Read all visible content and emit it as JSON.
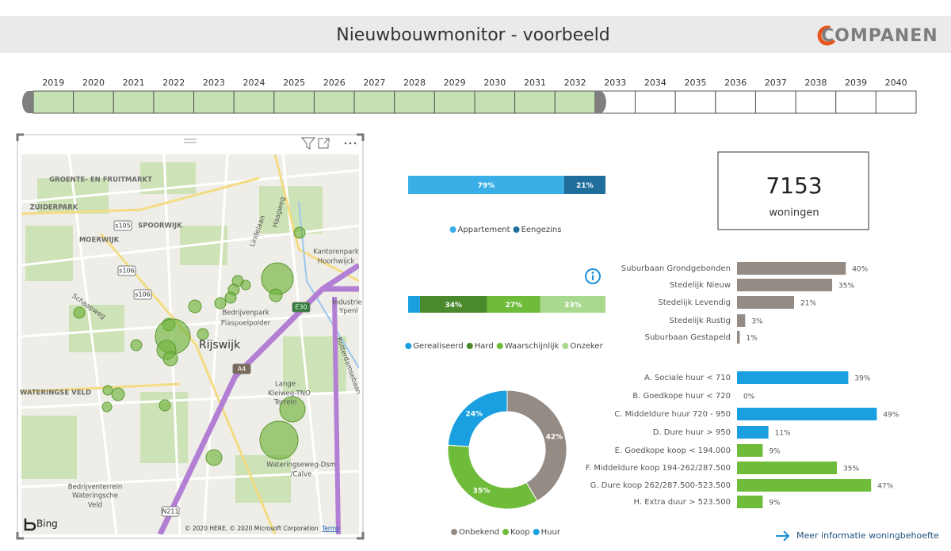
{
  "header": {
    "title": "Nieuwbouwmonitor - voorbeeld",
    "logo": "COMPANEN"
  },
  "timeline": {
    "years": [
      "2019",
      "2020",
      "2021",
      "2022",
      "2023",
      "2024",
      "2025",
      "2026",
      "2027",
      "2028",
      "2029",
      "2030",
      "2031",
      "2032",
      "2033",
      "2034",
      "2035",
      "2036",
      "2037",
      "2038",
      "2039",
      "2040"
    ],
    "selected": [
      "2019",
      "2032"
    ]
  },
  "map": {
    "labels": [
      "GROENTE- EN FRUITMARKT",
      "ZUIDERPARK",
      "MOERWIJK",
      "SPOORWIJK",
      "Schaapweg",
      "Lindelaan",
      "Haagweg",
      "Kantorenpark",
      "Hoorhwijck",
      "Bedrijvenpark",
      "Plaspoelpolder",
      "Rijswijk",
      "Industrie",
      "Ypenl",
      "Rotterdamsebaan",
      "WATERINGSE VELD",
      "Lange",
      "Kleiweg-TNO",
      "Terrein",
      "Wateringseweg-Dsm",
      "/Calve",
      "Bedrijventerrein",
      "Wateringsche",
      "Veld"
    ],
    "shields": [
      "s105",
      "s106",
      "s106",
      "A4",
      "E30",
      "N211"
    ],
    "brand": "Bing",
    "attribution": "© 2020 HERE, © 2020 Microsoft Corporation",
    "terms": "Terms"
  },
  "kpi": {
    "value": 7153,
    "label": "woningen"
  },
  "link": "Meer informatie woningbehoefte",
  "chart_data": [
    {
      "type": "stacked-bar",
      "series": [
        {
          "name": "Appartement",
          "color": "#3aaee6",
          "values": [
            79
          ],
          "value_labels": [
            "79%"
          ]
        },
        {
          "name": "Eengezins",
          "color": "#1f6e9c",
          "values": [
            21
          ],
          "value_labels": [
            "21%"
          ]
        }
      ]
    },
    {
      "type": "stacked-bar",
      "series": [
        {
          "name": "Gerealiseerd",
          "color": "#1aa0e0",
          "values": [
            6
          ]
        },
        {
          "name": "Hard",
          "color": "#4b8a2c",
          "values": [
            34
          ],
          "value_labels": [
            "34%"
          ]
        },
        {
          "name": "Waarschijnlijk",
          "color": "#6fbb3a",
          "values": [
            27
          ],
          "value_labels": [
            "27%"
          ]
        },
        {
          "name": "Onzeker",
          "color": "#a9d88f",
          "values": [
            33
          ],
          "value_labels": [
            "33%"
          ]
        }
      ]
    },
    {
      "type": "donut",
      "categories": [
        "Onbekend",
        "Koop",
        "Huur"
      ],
      "values": [
        42,
        35,
        24
      ],
      "value_labels": [
        "42%",
        "35%",
        "24%"
      ],
      "colors": [
        "#958b85",
        "#6fbb3a",
        "#1aa0e0"
      ]
    },
    {
      "type": "hbar",
      "categories": [
        "Suburbaan Grondgebonden",
        "Stedelijk Nieuw",
        "Stedelijk Levendig",
        "Stedelijk Rustig",
        "Suburbaan Gestapeld"
      ],
      "values": [
        40,
        35,
        21,
        3,
        1
      ],
      "value_labels": [
        "40%",
        "35%",
        "21%",
        "3%",
        "1%"
      ],
      "colors": [
        "#958b85",
        "#958b85",
        "#958b85",
        "#958b85",
        "#958b85"
      ]
    },
    {
      "type": "hbar",
      "categories": [
        "A. Sociale huur < 710",
        "B. Goedkope huur < 720",
        "C. Middeldure huur 720 - 950",
        "D. Dure huur > 950",
        "E. Goedkope koop < 194.000",
        "F. Middeldure koop 194-262/287.500",
        "G. Dure koop 262/287.500-523.500",
        "H. Extra duur > 523.500"
      ],
      "values": [
        39,
        0,
        49,
        11,
        9,
        35,
        47,
        9
      ],
      "value_labels": [
        "39%",
        "0%",
        "49%",
        "11%",
        "9%",
        "35%",
        "47%",
        "9%"
      ],
      "colors": [
        "#1aa0e0",
        "#1aa0e0",
        "#1aa0e0",
        "#1aa0e0",
        "#6fbb3a",
        "#6fbb3a",
        "#6fbb3a",
        "#6fbb3a"
      ]
    }
  ]
}
